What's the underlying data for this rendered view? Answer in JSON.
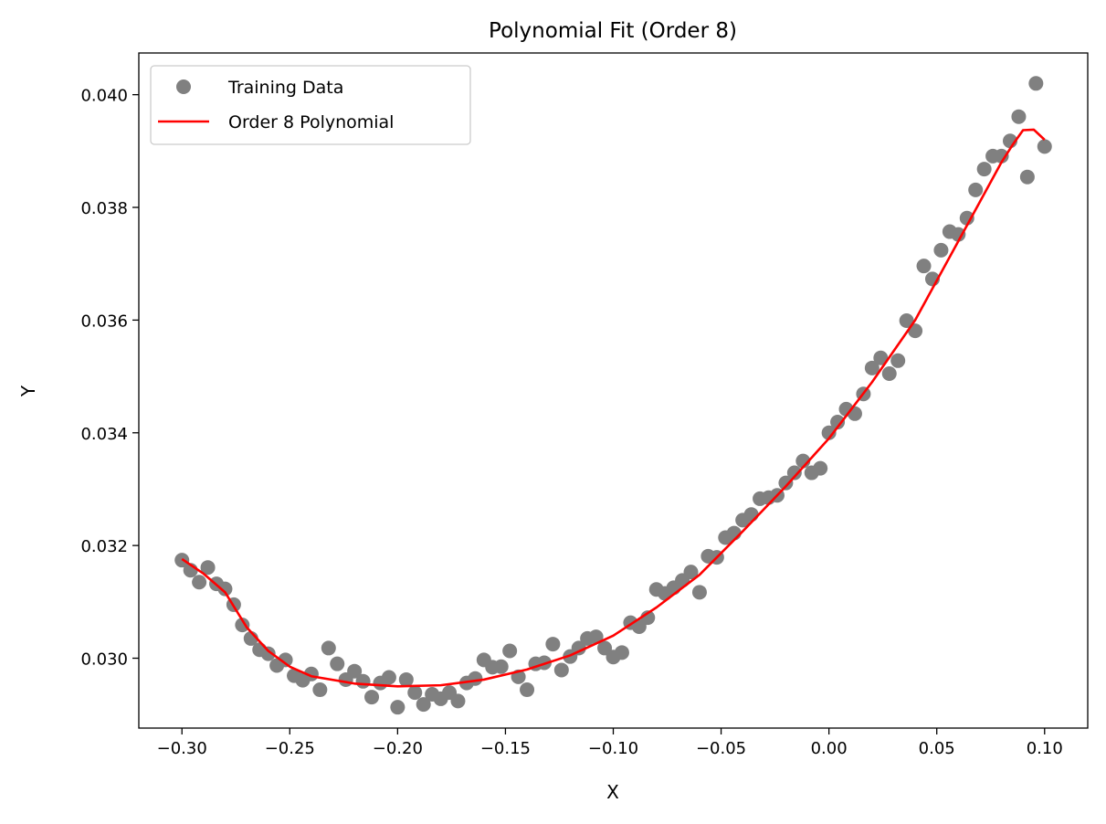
{
  "chart_data": {
    "type": "scatter",
    "title": "Polynomial Fit (Order 8)",
    "xlabel": "X",
    "ylabel": "Y",
    "xlim": [
      -0.32,
      0.12
    ],
    "ylim": [
      0.02876,
      0.04074
    ],
    "grid": false,
    "legend_position": "top-left",
    "xticks": [
      -0.3,
      -0.25,
      -0.2,
      -0.15,
      -0.1,
      -0.05,
      0.0,
      0.05,
      0.1
    ],
    "xtick_labels": [
      "−0.30",
      "−0.25",
      "−0.20",
      "−0.15",
      "−0.10",
      "−0.05",
      "0.00",
      "0.05",
      "0.10"
    ],
    "yticks": [
      0.03,
      0.032,
      0.034,
      0.036,
      0.038,
      0.04
    ],
    "ytick_labels": [
      "0.030",
      "0.032",
      "0.034",
      "0.036",
      "0.038",
      "0.040"
    ],
    "series": [
      {
        "name": "Training Data",
        "kind": "scatter",
        "color": "#808080",
        "x_start": -0.3,
        "x_step": 0.004,
        "y": [
          0.03174,
          0.03156,
          0.03135,
          0.03161,
          0.03132,
          0.03123,
          0.03095,
          0.03059,
          0.03035,
          0.03015,
          0.03008,
          0.02987,
          0.02997,
          0.02969,
          0.02961,
          0.02972,
          0.02944,
          0.03018,
          0.0299,
          0.02962,
          0.02977,
          0.02959,
          0.02931,
          0.02956,
          0.02966,
          0.02913,
          0.02962,
          0.02939,
          0.02918,
          0.02936,
          0.02928,
          0.02939,
          0.02924,
          0.02956,
          0.02964,
          0.02997,
          0.02984,
          0.02985,
          0.03013,
          0.02967,
          0.02944,
          0.0299,
          0.02992,
          0.03025,
          0.02979,
          0.03003,
          0.03018,
          0.03035,
          0.03038,
          0.03018,
          0.03002,
          0.0301,
          0.03063,
          0.03056,
          0.03072,
          0.03122,
          0.03115,
          0.03125,
          0.03138,
          0.03153,
          0.03117,
          0.03181,
          0.03179,
          0.03214,
          0.03222,
          0.03245,
          0.03255,
          0.03283,
          0.03285,
          0.03289,
          0.03311,
          0.03329,
          0.0335,
          0.03329,
          0.03337,
          0.034,
          0.03419,
          0.03442,
          0.03434,
          0.03469,
          0.03515,
          0.03533,
          0.03505,
          0.03528,
          0.03599,
          0.03581,
          0.03696,
          0.03673,
          0.03724,
          0.03757,
          0.03752,
          0.03781,
          0.03831,
          0.03868,
          0.03891,
          0.03891,
          0.03918,
          0.03961,
          0.03854,
          0.0402,
          0.03908
        ]
      },
      {
        "name": "Order 8 Polynomial",
        "kind": "line",
        "color": "#ff0000",
        "x": [
          -0.3,
          -0.29,
          -0.28,
          -0.27,
          -0.26,
          -0.25,
          -0.24,
          -0.22,
          -0.2,
          -0.18,
          -0.16,
          -0.14,
          -0.12,
          -0.1,
          -0.08,
          -0.06,
          -0.04,
          -0.02,
          0.0,
          0.02,
          0.04,
          0.06,
          0.07,
          0.08,
          0.085,
          0.09,
          0.095,
          0.1
        ],
        "y": [
          0.03176,
          0.0315,
          0.03117,
          0.03055,
          0.03013,
          0.02985,
          0.02968,
          0.02955,
          0.0295,
          0.02952,
          0.02962,
          0.0298,
          0.03005,
          0.0304,
          0.0309,
          0.03148,
          0.03225,
          0.03305,
          0.0339,
          0.0349,
          0.036,
          0.0374,
          0.0381,
          0.0388,
          0.0391,
          0.03937,
          0.03938,
          0.0392
        ]
      }
    ]
  }
}
